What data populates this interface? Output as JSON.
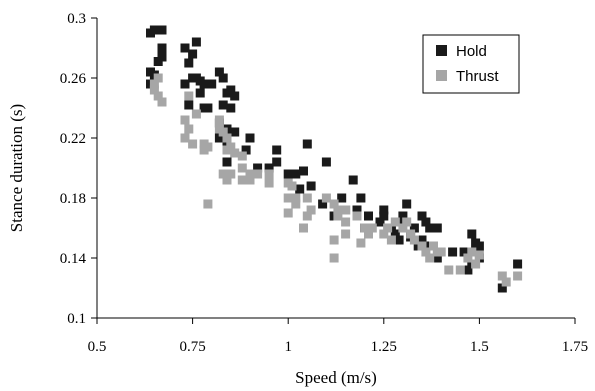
{
  "chart_data": {
    "type": "scatter",
    "title": "",
    "xlabel": "Speed (m/s)",
    "ylabel": "Stance duration (s)",
    "xlim": [
      0.5,
      1.75
    ],
    "ylim": [
      0.1,
      0.3
    ],
    "x_ticks": [
      "0.5",
      "0.75",
      "1",
      "1.25",
      "1.5",
      "1.75"
    ],
    "y_ticks": [
      "0.1",
      "0.14",
      "0.18",
      "0.22",
      "0.26",
      "0.3"
    ],
    "x_tick_values": [
      0.5,
      0.75,
      1.0,
      1.25,
      1.5,
      1.75
    ],
    "y_tick_values": [
      0.1,
      0.14,
      0.18,
      0.22,
      0.26,
      0.3
    ],
    "grid": false,
    "legend_position": "top-right",
    "series": [
      {
        "name": "Hold",
        "color": "#1a1a1a",
        "points": [
          [
            0.64,
            0.29
          ],
          [
            0.65,
            0.292
          ],
          [
            0.67,
            0.292
          ],
          [
            0.64,
            0.264
          ],
          [
            0.66,
            0.271
          ],
          [
            0.67,
            0.28
          ],
          [
            0.67,
            0.274
          ],
          [
            0.64,
            0.256
          ],
          [
            0.65,
            0.262
          ],
          [
            0.76,
            0.284
          ],
          [
            0.73,
            0.28
          ],
          [
            0.75,
            0.276
          ],
          [
            0.74,
            0.27
          ],
          [
            0.75,
            0.26
          ],
          [
            0.73,
            0.256
          ],
          [
            0.76,
            0.26
          ],
          [
            0.77,
            0.258
          ],
          [
            0.78,
            0.256
          ],
          [
            0.8,
            0.256
          ],
          [
            0.77,
            0.25
          ],
          [
            0.74,
            0.242
          ],
          [
            0.78,
            0.24
          ],
          [
            0.79,
            0.24
          ],
          [
            0.82,
            0.264
          ],
          [
            0.83,
            0.26
          ],
          [
            0.84,
            0.25
          ],
          [
            0.85,
            0.252
          ],
          [
            0.86,
            0.248
          ],
          [
            0.83,
            0.242
          ],
          [
            0.85,
            0.24
          ],
          [
            0.82,
            0.23
          ],
          [
            0.84,
            0.226
          ],
          [
            0.86,
            0.224
          ],
          [
            0.82,
            0.22
          ],
          [
            0.84,
            0.214
          ],
          [
            0.84,
            0.204
          ],
          [
            0.9,
            0.22
          ],
          [
            0.89,
            0.212
          ],
          [
            0.92,
            0.2
          ],
          [
            0.95,
            0.2
          ],
          [
            0.97,
            0.212
          ],
          [
            0.97,
            0.204
          ],
          [
            1.0,
            0.196
          ],
          [
            1.02,
            0.196
          ],
          [
            1.05,
            0.216
          ],
          [
            1.04,
            0.198
          ],
          [
            1.06,
            0.188
          ],
          [
            1.03,
            0.186
          ],
          [
            1.09,
            0.176
          ],
          [
            1.1,
            0.204
          ],
          [
            1.14,
            0.18
          ],
          [
            1.17,
            0.192
          ],
          [
            1.15,
            0.172
          ],
          [
            1.19,
            0.18
          ],
          [
            1.12,
            0.168
          ],
          [
            1.2,
            0.16
          ],
          [
            1.21,
            0.168
          ],
          [
            1.18,
            0.172
          ],
          [
            1.24,
            0.164
          ],
          [
            1.25,
            0.172
          ],
          [
            1.25,
            0.168
          ],
          [
            1.27,
            0.16
          ],
          [
            1.29,
            0.164
          ],
          [
            1.31,
            0.176
          ],
          [
            1.3,
            0.168
          ],
          [
            1.28,
            0.156
          ],
          [
            1.29,
            0.152
          ],
          [
            1.32,
            0.154
          ],
          [
            1.33,
            0.16
          ],
          [
            1.35,
            0.168
          ],
          [
            1.36,
            0.164
          ],
          [
            1.37,
            0.16
          ],
          [
            1.38,
            0.16
          ],
          [
            1.39,
            0.16
          ],
          [
            1.35,
            0.152
          ],
          [
            1.37,
            0.148
          ],
          [
            1.34,
            0.148
          ],
          [
            1.39,
            0.14
          ],
          [
            1.43,
            0.144
          ],
          [
            1.46,
            0.144
          ],
          [
            1.48,
            0.156
          ],
          [
            1.49,
            0.15
          ],
          [
            1.5,
            0.148
          ],
          [
            1.48,
            0.136
          ],
          [
            1.47,
            0.132
          ],
          [
            1.5,
            0.14
          ],
          [
            1.56,
            0.12
          ],
          [
            1.6,
            0.136
          ]
        ]
      },
      {
        "name": "Thrust",
        "color": "#a6a6a6",
        "points": [
          [
            0.66,
            0.26
          ],
          [
            0.65,
            0.252
          ],
          [
            0.66,
            0.248
          ],
          [
            0.67,
            0.244
          ],
          [
            0.65,
            0.256
          ],
          [
            0.74,
            0.248
          ],
          [
            0.73,
            0.232
          ],
          [
            0.74,
            0.226
          ],
          [
            0.73,
            0.22
          ],
          [
            0.75,
            0.216
          ],
          [
            0.76,
            0.236
          ],
          [
            0.78,
            0.216
          ],
          [
            0.78,
            0.212
          ],
          [
            0.79,
            0.214
          ],
          [
            0.79,
            0.176
          ],
          [
            0.82,
            0.232
          ],
          [
            0.82,
            0.226
          ],
          [
            0.83,
            0.224
          ],
          [
            0.84,
            0.22
          ],
          [
            0.84,
            0.212
          ],
          [
            0.85,
            0.214
          ],
          [
            0.86,
            0.21
          ],
          [
            0.83,
            0.196
          ],
          [
            0.85,
            0.196
          ],
          [
            0.84,
            0.192
          ],
          [
            0.88,
            0.208
          ],
          [
            0.88,
            0.2
          ],
          [
            0.9,
            0.196
          ],
          [
            0.88,
            0.192
          ],
          [
            0.92,
            0.196
          ],
          [
            0.9,
            0.192
          ],
          [
            0.95,
            0.196
          ],
          [
            0.95,
            0.19
          ],
          [
            1.0,
            0.19
          ],
          [
            1.01,
            0.188
          ],
          [
            1.0,
            0.18
          ],
          [
            1.02,
            0.18
          ],
          [
            1.0,
            0.17
          ],
          [
            1.02,
            0.176
          ],
          [
            1.05,
            0.18
          ],
          [
            1.05,
            0.168
          ],
          [
            1.04,
            0.16
          ],
          [
            1.06,
            0.172
          ],
          [
            1.1,
            0.18
          ],
          [
            1.12,
            0.176
          ],
          [
            1.13,
            0.172
          ],
          [
            1.15,
            0.172
          ],
          [
            1.13,
            0.168
          ],
          [
            1.15,
            0.164
          ],
          [
            1.12,
            0.152
          ],
          [
            1.15,
            0.156
          ],
          [
            1.12,
            0.14
          ],
          [
            1.18,
            0.168
          ],
          [
            1.2,
            0.16
          ],
          [
            1.21,
            0.156
          ],
          [
            1.19,
            0.15
          ],
          [
            1.22,
            0.16
          ],
          [
            1.25,
            0.156
          ],
          [
            1.26,
            0.16
          ],
          [
            1.27,
            0.152
          ],
          [
            1.28,
            0.164
          ],
          [
            1.3,
            0.16
          ],
          [
            1.31,
            0.164
          ],
          [
            1.32,
            0.156
          ],
          [
            1.33,
            0.152
          ],
          [
            1.35,
            0.148
          ],
          [
            1.36,
            0.144
          ],
          [
            1.38,
            0.148
          ],
          [
            1.39,
            0.144
          ],
          [
            1.37,
            0.14
          ],
          [
            1.4,
            0.144
          ],
          [
            1.42,
            0.132
          ],
          [
            1.45,
            0.132
          ],
          [
            1.47,
            0.14
          ],
          [
            1.48,
            0.144
          ],
          [
            1.49,
            0.136
          ],
          [
            1.5,
            0.142
          ],
          [
            1.56,
            0.128
          ],
          [
            1.57,
            0.124
          ],
          [
            1.6,
            0.128
          ]
        ]
      }
    ]
  }
}
